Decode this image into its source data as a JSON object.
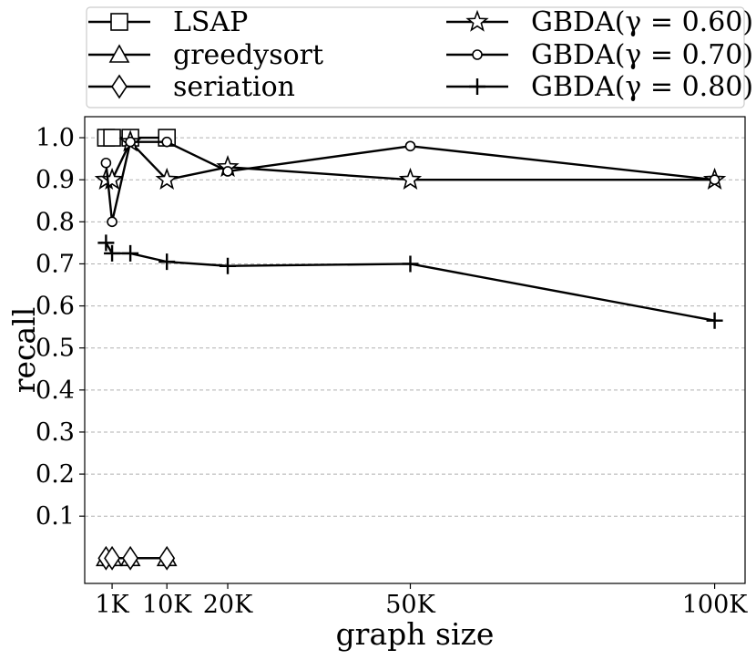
{
  "chart_data": {
    "type": "line",
    "xlabel": "graph size",
    "ylabel": "recall",
    "xlim": [
      -3500,
      105000
    ],
    "ylim": [
      -0.06,
      1.05
    ],
    "x_ticks": [
      {
        "value": 1000,
        "label": "1K"
      },
      {
        "value": 10000,
        "label": "10K"
      },
      {
        "value": 20000,
        "label": "20K"
      },
      {
        "value": 50000,
        "label": "50K"
      },
      {
        "value": 100000,
        "label": "100K"
      }
    ],
    "y_ticks": [
      {
        "value": 0.1,
        "label": "0.1"
      },
      {
        "value": 0.2,
        "label": "0.2"
      },
      {
        "value": 0.3,
        "label": "0.3"
      },
      {
        "value": 0.4,
        "label": "0.4"
      },
      {
        "value": 0.5,
        "label": "0.5"
      },
      {
        "value": 0.6,
        "label": "0.6"
      },
      {
        "value": 0.7,
        "label": "0.7"
      },
      {
        "value": 0.8,
        "label": "0.8"
      },
      {
        "value": 0.9,
        "label": "0.9"
      },
      {
        "value": 1.0,
        "label": "1.0"
      }
    ],
    "grid": "horizontal-dashed",
    "legend_position": "top, above plot",
    "series": [
      {
        "name": "LSAP",
        "marker": "square",
        "x": [
          0,
          1000,
          4000,
          10000
        ],
        "y": [
          1.0,
          1.0,
          1.0,
          1.0
        ]
      },
      {
        "name": "greedysort",
        "marker": "triangle",
        "x": [
          0,
          1000,
          4000,
          10000
        ],
        "y": [
          0.0,
          0.0,
          0.0,
          0.0
        ]
      },
      {
        "name": "seriation",
        "marker": "diamond",
        "x": [
          0,
          1000,
          4000,
          10000
        ],
        "y": [
          0.0,
          0.0,
          0.0,
          0.0
        ]
      },
      {
        "name": "GBDA(γ = 0.60)",
        "marker": "star",
        "x": [
          0,
          1000,
          4000,
          10000,
          20000,
          50000,
          100000
        ],
        "y": [
          0.9,
          0.9,
          0.99,
          0.9,
          0.93,
          0.9,
          0.9
        ]
      },
      {
        "name": "GBDA(γ = 0.70)",
        "marker": "circle",
        "x": [
          0,
          1000,
          4000,
          10000,
          20000,
          50000,
          100000
        ],
        "y": [
          0.94,
          0.8,
          0.99,
          0.99,
          0.92,
          0.98,
          0.9
        ]
      },
      {
        "name": "GBDA(γ = 0.80)",
        "marker": "plus",
        "x": [
          0,
          1000,
          4000,
          10000,
          20000,
          50000,
          100000
        ],
        "y": [
          0.75,
          0.725,
          0.725,
          0.705,
          0.695,
          0.7,
          0.565
        ]
      }
    ]
  }
}
